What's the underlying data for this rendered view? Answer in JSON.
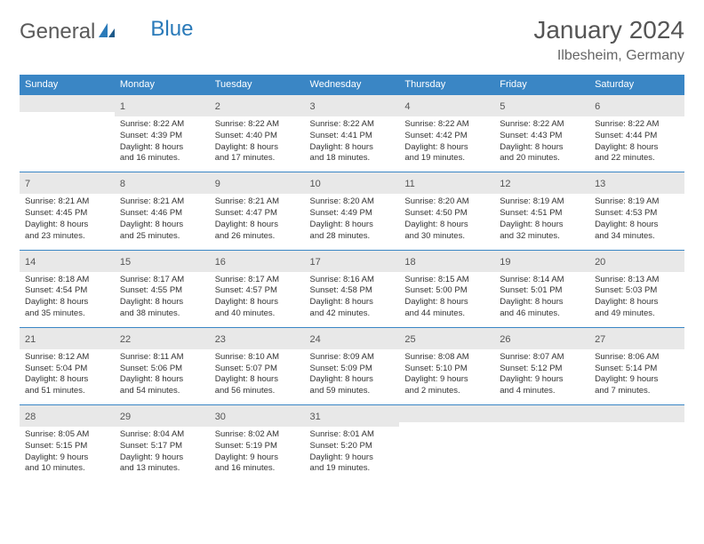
{
  "logo": {
    "textA": "General",
    "textB": "Blue"
  },
  "title": "January 2024",
  "location": "Ilbesheim, Germany",
  "colors": {
    "header_bg": "#3a86c5",
    "header_text": "#ffffff",
    "daynum_bg": "#e8e8e8",
    "border": "#3a86c5",
    "logo_gray": "#5a5a5a",
    "logo_blue": "#2a7ab9"
  },
  "day_headers": [
    "Sunday",
    "Monday",
    "Tuesday",
    "Wednesday",
    "Thursday",
    "Friday",
    "Saturday"
  ],
  "weeks": [
    [
      {
        "n": "",
        "sr": "",
        "ss": "",
        "dl1": "",
        "dl2": ""
      },
      {
        "n": "1",
        "sr": "Sunrise: 8:22 AM",
        "ss": "Sunset: 4:39 PM",
        "dl1": "Daylight: 8 hours",
        "dl2": "and 16 minutes."
      },
      {
        "n": "2",
        "sr": "Sunrise: 8:22 AM",
        "ss": "Sunset: 4:40 PM",
        "dl1": "Daylight: 8 hours",
        "dl2": "and 17 minutes."
      },
      {
        "n": "3",
        "sr": "Sunrise: 8:22 AM",
        "ss": "Sunset: 4:41 PM",
        "dl1": "Daylight: 8 hours",
        "dl2": "and 18 minutes."
      },
      {
        "n": "4",
        "sr": "Sunrise: 8:22 AM",
        "ss": "Sunset: 4:42 PM",
        "dl1": "Daylight: 8 hours",
        "dl2": "and 19 minutes."
      },
      {
        "n": "5",
        "sr": "Sunrise: 8:22 AM",
        "ss": "Sunset: 4:43 PM",
        "dl1": "Daylight: 8 hours",
        "dl2": "and 20 minutes."
      },
      {
        "n": "6",
        "sr": "Sunrise: 8:22 AM",
        "ss": "Sunset: 4:44 PM",
        "dl1": "Daylight: 8 hours",
        "dl2": "and 22 minutes."
      }
    ],
    [
      {
        "n": "7",
        "sr": "Sunrise: 8:21 AM",
        "ss": "Sunset: 4:45 PM",
        "dl1": "Daylight: 8 hours",
        "dl2": "and 23 minutes."
      },
      {
        "n": "8",
        "sr": "Sunrise: 8:21 AM",
        "ss": "Sunset: 4:46 PM",
        "dl1": "Daylight: 8 hours",
        "dl2": "and 25 minutes."
      },
      {
        "n": "9",
        "sr": "Sunrise: 8:21 AM",
        "ss": "Sunset: 4:47 PM",
        "dl1": "Daylight: 8 hours",
        "dl2": "and 26 minutes."
      },
      {
        "n": "10",
        "sr": "Sunrise: 8:20 AM",
        "ss": "Sunset: 4:49 PM",
        "dl1": "Daylight: 8 hours",
        "dl2": "and 28 minutes."
      },
      {
        "n": "11",
        "sr": "Sunrise: 8:20 AM",
        "ss": "Sunset: 4:50 PM",
        "dl1": "Daylight: 8 hours",
        "dl2": "and 30 minutes."
      },
      {
        "n": "12",
        "sr": "Sunrise: 8:19 AM",
        "ss": "Sunset: 4:51 PM",
        "dl1": "Daylight: 8 hours",
        "dl2": "and 32 minutes."
      },
      {
        "n": "13",
        "sr": "Sunrise: 8:19 AM",
        "ss": "Sunset: 4:53 PM",
        "dl1": "Daylight: 8 hours",
        "dl2": "and 34 minutes."
      }
    ],
    [
      {
        "n": "14",
        "sr": "Sunrise: 8:18 AM",
        "ss": "Sunset: 4:54 PM",
        "dl1": "Daylight: 8 hours",
        "dl2": "and 35 minutes."
      },
      {
        "n": "15",
        "sr": "Sunrise: 8:17 AM",
        "ss": "Sunset: 4:55 PM",
        "dl1": "Daylight: 8 hours",
        "dl2": "and 38 minutes."
      },
      {
        "n": "16",
        "sr": "Sunrise: 8:17 AM",
        "ss": "Sunset: 4:57 PM",
        "dl1": "Daylight: 8 hours",
        "dl2": "and 40 minutes."
      },
      {
        "n": "17",
        "sr": "Sunrise: 8:16 AM",
        "ss": "Sunset: 4:58 PM",
        "dl1": "Daylight: 8 hours",
        "dl2": "and 42 minutes."
      },
      {
        "n": "18",
        "sr": "Sunrise: 8:15 AM",
        "ss": "Sunset: 5:00 PM",
        "dl1": "Daylight: 8 hours",
        "dl2": "and 44 minutes."
      },
      {
        "n": "19",
        "sr": "Sunrise: 8:14 AM",
        "ss": "Sunset: 5:01 PM",
        "dl1": "Daylight: 8 hours",
        "dl2": "and 46 minutes."
      },
      {
        "n": "20",
        "sr": "Sunrise: 8:13 AM",
        "ss": "Sunset: 5:03 PM",
        "dl1": "Daylight: 8 hours",
        "dl2": "and 49 minutes."
      }
    ],
    [
      {
        "n": "21",
        "sr": "Sunrise: 8:12 AM",
        "ss": "Sunset: 5:04 PM",
        "dl1": "Daylight: 8 hours",
        "dl2": "and 51 minutes."
      },
      {
        "n": "22",
        "sr": "Sunrise: 8:11 AM",
        "ss": "Sunset: 5:06 PM",
        "dl1": "Daylight: 8 hours",
        "dl2": "and 54 minutes."
      },
      {
        "n": "23",
        "sr": "Sunrise: 8:10 AM",
        "ss": "Sunset: 5:07 PM",
        "dl1": "Daylight: 8 hours",
        "dl2": "and 56 minutes."
      },
      {
        "n": "24",
        "sr": "Sunrise: 8:09 AM",
        "ss": "Sunset: 5:09 PM",
        "dl1": "Daylight: 8 hours",
        "dl2": "and 59 minutes."
      },
      {
        "n": "25",
        "sr": "Sunrise: 8:08 AM",
        "ss": "Sunset: 5:10 PM",
        "dl1": "Daylight: 9 hours",
        "dl2": "and 2 minutes."
      },
      {
        "n": "26",
        "sr": "Sunrise: 8:07 AM",
        "ss": "Sunset: 5:12 PM",
        "dl1": "Daylight: 9 hours",
        "dl2": "and 4 minutes."
      },
      {
        "n": "27",
        "sr": "Sunrise: 8:06 AM",
        "ss": "Sunset: 5:14 PM",
        "dl1": "Daylight: 9 hours",
        "dl2": "and 7 minutes."
      }
    ],
    [
      {
        "n": "28",
        "sr": "Sunrise: 8:05 AM",
        "ss": "Sunset: 5:15 PM",
        "dl1": "Daylight: 9 hours",
        "dl2": "and 10 minutes."
      },
      {
        "n": "29",
        "sr": "Sunrise: 8:04 AM",
        "ss": "Sunset: 5:17 PM",
        "dl1": "Daylight: 9 hours",
        "dl2": "and 13 minutes."
      },
      {
        "n": "30",
        "sr": "Sunrise: 8:02 AM",
        "ss": "Sunset: 5:19 PM",
        "dl1": "Daylight: 9 hours",
        "dl2": "and 16 minutes."
      },
      {
        "n": "31",
        "sr": "Sunrise: 8:01 AM",
        "ss": "Sunset: 5:20 PM",
        "dl1": "Daylight: 9 hours",
        "dl2": "and 19 minutes."
      },
      {
        "n": "",
        "sr": "",
        "ss": "",
        "dl1": "",
        "dl2": ""
      },
      {
        "n": "",
        "sr": "",
        "ss": "",
        "dl1": "",
        "dl2": ""
      },
      {
        "n": "",
        "sr": "",
        "ss": "",
        "dl1": "",
        "dl2": ""
      }
    ]
  ]
}
